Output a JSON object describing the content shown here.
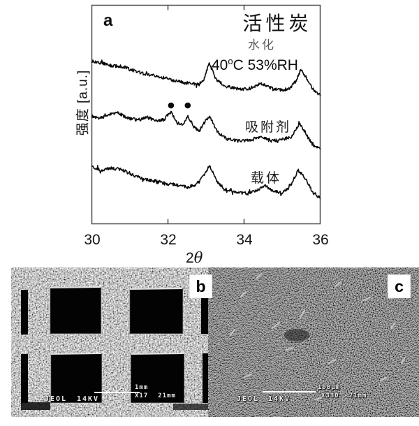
{
  "figure": {
    "panel_a": {
      "panel_label": "a",
      "title": "活性炭",
      "ylabel": "强度 [a.u.]",
      "xlabel_base": "2",
      "xlabel_theta": "θ",
      "xticks": [
        "30",
        "32",
        "34",
        "36"
      ],
      "trace_labels": {
        "hydrated_name": "水化",
        "hydrated_cond_base": "40",
        "hydrated_cond_sup": "o",
        "hydrated_cond_rest": "C 53%RH",
        "adsorbent": "吸附剂",
        "support": "载体"
      }
    },
    "panel_b": {
      "panel_label": "b",
      "footer": {
        "vendor": "JEOL",
        "voltage": "14KV",
        "scale_label": "1mm",
        "magnification": "X17",
        "working_distance": "21mm"
      }
    },
    "panel_c": {
      "panel_label": "c",
      "footer": {
        "vendor": "JEOL",
        "voltage": "14KV",
        "scale_label": "100μm",
        "magnification": "X330",
        "working_distance": "21mm"
      }
    }
  },
  "chart_data": {
    "type": "line",
    "title": "活性炭",
    "xlabel": "2θ",
    "ylabel": "强度 [a.u.]",
    "xlim": [
      30,
      36
    ],
    "xticks": [
      30,
      32,
      34,
      36
    ],
    "grid": false,
    "legend_position": "inline-right",
    "note": "Three vertically offset XRD traces (intensity in arbitrary units v). All traces show peaks near 2θ≈33.1, 34.5 and 35.5; the adsorbent trace has extra peaks at 32.08 and 32.52 marked with filled circles.",
    "series": [
      {
        "name": "水化 40oC 53%RH",
        "x": [
          30,
          30.25,
          30.5,
          30.8,
          31.1,
          31.4,
          31.7,
          32.0,
          32.3,
          32.6,
          32.8,
          32.95,
          33.08,
          33.25,
          33.5,
          33.8,
          34.1,
          34.45,
          34.75,
          35.0,
          35.2,
          35.35,
          35.5,
          35.68,
          35.85,
          36.0
        ],
        "v": [
          232,
          230,
          226,
          225,
          219,
          214,
          211,
          207,
          203,
          200,
          199,
          206,
          231,
          207,
          197,
          193,
          192,
          201,
          193,
          191,
          193,
          203,
          221,
          204,
          189,
          185
        ]
      },
      {
        "name": "吸附剂",
        "x": [
          30,
          30.2,
          30.45,
          30.7,
          30.95,
          31.2,
          31.45,
          31.7,
          31.9,
          32.08,
          32.25,
          32.4,
          32.52,
          32.68,
          32.82,
          33.0,
          33.1,
          33.3,
          33.55,
          33.85,
          34.15,
          34.45,
          34.7,
          35.0,
          35.25,
          35.45,
          35.6,
          35.8,
          36.0
        ],
        "v": [
          154,
          150,
          156,
          158,
          151,
          148,
          152,
          147,
          149,
          160,
          144,
          141,
          155,
          138,
          132,
          148,
          152,
          131,
          121,
          118,
          119,
          125,
          118,
          120,
          124,
          143,
          131,
          112,
          107
        ]
      },
      {
        "name": "载体",
        "x": [
          30,
          30.25,
          30.5,
          30.8,
          31.05,
          31.3,
          31.6,
          31.9,
          32.2,
          32.5,
          32.75,
          32.95,
          33.1,
          33.28,
          33.5,
          33.8,
          34.1,
          34.35,
          34.55,
          34.75,
          35.0,
          35.2,
          35.42,
          35.6,
          35.8,
          36.0
        ],
        "v": [
          82,
          76,
          79,
          77,
          70,
          65,
          61,
          57,
          55,
          52,
          56,
          70,
          83,
          60,
          49,
          44,
          43,
          48,
          54,
          47,
          43,
          52,
          76,
          65,
          45,
          38
        ]
      }
    ],
    "peak_markers": {
      "symbol": "●",
      "series": "吸附剂",
      "x": [
        32.08,
        32.52
      ],
      "v": 169
    }
  }
}
